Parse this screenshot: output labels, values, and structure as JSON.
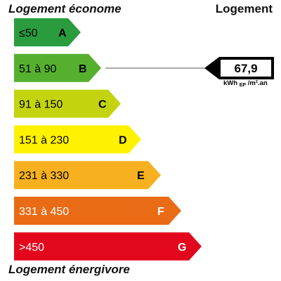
{
  "labels": {
    "top_left": "Logement économe",
    "top_right": "Logement",
    "bottom_left": "Logement énergivore"
  },
  "classes": [
    {
      "letter": "A",
      "range": "≤50",
      "color": "#2a9c3d",
      "text_color": "#000000"
    },
    {
      "letter": "B",
      "range": "51 à 90",
      "color": "#55b02f",
      "text_color": "#000000"
    },
    {
      "letter": "C",
      "range": "91 à 150",
      "color": "#c3d40e",
      "text_color": "#000000"
    },
    {
      "letter": "D",
      "range": "151 à 230",
      "color": "#fff200",
      "text_color": "#000000"
    },
    {
      "letter": "E",
      "range": "231 à 330",
      "color": "#f7b120",
      "text_color": "#000000"
    },
    {
      "letter": "F",
      "range": "331 à 450",
      "color": "#ea6b16",
      "text_color": "#ffffff"
    },
    {
      "letter": "G",
      "range": ">450",
      "color": "#e2071c",
      "text_color": "#ffffff"
    }
  ],
  "indicator": {
    "value": "67,9",
    "class_letter": "B",
    "unit": {
      "main": "kWh",
      "sub": "EP",
      "rest": "/m².an"
    }
  }
}
